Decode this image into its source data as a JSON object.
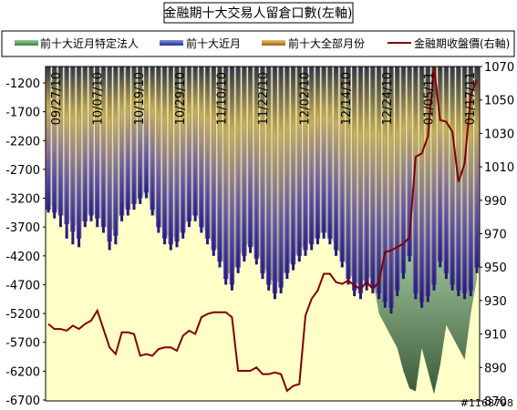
{
  "chart_data": {
    "type": "bar",
    "title": "金融期十大交易人留倉口數(左軸)",
    "series": [
      {
        "name": "前十大近月特定法人",
        "color": "#5fa85f"
      },
      {
        "name": "前十大近月",
        "color": "#4060c0"
      },
      {
        "name": "前十大全部月份",
        "color": "#e0a030"
      },
      {
        "name": "金融期收盤價(右軸)",
        "color": "#800000"
      }
    ],
    "left_axis": {
      "ylim": [
        -6700,
        -700
      ],
      "ticks": [
        "-1200",
        "-1700",
        "-2200",
        "-2700",
        "-3200",
        "-3700",
        "-4200",
        "-4700",
        "-5200",
        "-5700",
        "-6200",
        "-6700"
      ]
    },
    "right_axis": {
      "ylim": [
        870,
        1070
      ],
      "ticks": [
        "1070",
        "1050",
        "1030",
        "1010",
        "990",
        "970",
        "950",
        "930",
        "910",
        "890",
        "870"
      ]
    },
    "date_labels": [
      "09/27/10",
      "10/07/10",
      "10/19/10",
      "10/29/10",
      "11/10/10",
      "11/22/10",
      "12/02/10",
      "12/14/10",
      "12/24/10",
      "01/05/11",
      "01/17/11"
    ],
    "all_months_bottom": [
      -3400,
      -3450,
      -3500,
      -3650,
      -3780,
      -3900,
      -3600,
      -3500,
      -3550,
      -3700,
      -3950,
      -3850,
      -3500,
      -3400,
      -3300,
      -3200,
      -3100,
      -3400,
      -3700,
      -3900,
      -4000,
      -3950,
      -3800,
      -3600,
      -3500,
      -3700,
      -3900,
      -4100,
      -4300,
      -4600,
      -4700,
      -4400,
      -4200,
      -4050,
      -4250,
      -4500,
      -4700,
      -4850,
      -4750,
      -4500,
      -4350,
      -4200,
      -4100,
      -4000,
      -3900,
      -3800,
      -3900,
      -4100,
      -4300,
      -4600,
      -4800,
      -4850,
      -4700,
      -4750,
      -4850,
      -5000,
      -5100,
      -4800,
      -4500,
      -4200,
      -4850,
      -5000,
      -4900,
      -4700,
      -4300,
      -4500,
      -4700,
      -4800,
      -4850,
      -4800,
      -4400
    ],
    "near_month_bottom": [
      -3450,
      -3550,
      -3700,
      -3900,
      -4000,
      -4050,
      -3700,
      -3600,
      -3700,
      -3800,
      -4100,
      -4000,
      -3600,
      -3500,
      -3400,
      -3300,
      -3200,
      -3500,
      -3800,
      -4000,
      -4100,
      -4050,
      -3900,
      -3700,
      -3600,
      -3800,
      -4000,
      -4200,
      -4400,
      -4700,
      -4800,
      -4500,
      -4300,
      -4150,
      -4350,
      -4600,
      -4800,
      -4950,
      -4850,
      -4600,
      -4450,
      -4300,
      -4200,
      -4100,
      -4000,
      -3900,
      -4000,
      -4200,
      -4400,
      -4700,
      -4900,
      -4950,
      -4800,
      -4850,
      -4950,
      -5100,
      -5200,
      -4900,
      -4600,
      -4300,
      -4950,
      -5100,
      -5000,
      -4800,
      -4400,
      -4600,
      -4800,
      -4900,
      -4950,
      -4900,
      -4500
    ],
    "inst_near_month": [
      -3300,
      -3350,
      -3450,
      -3550,
      -3650,
      -3700,
      -3500,
      -3450,
      -3500,
      -3600,
      -3800,
      -3700,
      -3400,
      -3300,
      -3300,
      -3200,
      -3100,
      -3400,
      -3650,
      -3800,
      -3900,
      -3850,
      -3700,
      -3550,
      -3450,
      -3650,
      -3850,
      -4000,
      -4150,
      -4450,
      -4550,
      -4250,
      -4050,
      -3950,
      -4100,
      -4350,
      -4550,
      -4700,
      -4600,
      -4400,
      -4250,
      -4100,
      -4000,
      -3950,
      -3850,
      -3750,
      -3850,
      -4050,
      -4200,
      -4450,
      -4650,
      -4700,
      -4550,
      -4600,
      -5200,
      -5400,
      -5600,
      -5800,
      -6200,
      -6500,
      -6550,
      -5800,
      -6200,
      -6600,
      -6100,
      -5400,
      -5600,
      -5800,
      -6000,
      -5200,
      -4600
    ],
    "close_price": [
      916,
      913,
      913,
      912,
      915,
      913,
      916,
      918,
      924,
      913,
      902,
      898,
      911,
      911,
      910,
      897,
      898,
      897,
      901,
      902,
      902,
      900,
      909,
      912,
      910,
      920,
      922,
      923,
      923,
      923,
      920,
      888,
      888,
      888,
      890,
      886,
      886,
      887,
      886,
      876,
      879,
      880,
      921,
      931,
      936,
      946,
      946,
      941,
      940,
      942,
      939,
      937,
      941,
      937,
      941,
      959,
      960,
      962,
      964,
      968,
      1016,
      1018,
      1028,
      1075,
      1038,
      1037,
      1031,
      1001,
      1012,
      1053,
      1062
    ]
  },
  "watermark": "#1168798"
}
